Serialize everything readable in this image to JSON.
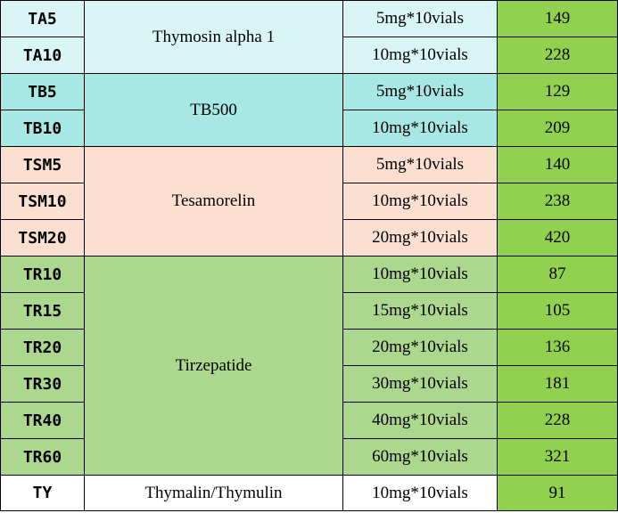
{
  "colors": {
    "thymosin": "#d9f5f5",
    "tb500": "#a8e8e4",
    "tesamorelin": "#fbe0d1",
    "tirzepatide": "#acd78e",
    "thymalin": "#ffffff",
    "price": "#92d050",
    "border": "#000000"
  },
  "groups": [
    {
      "name": "Thymosin alpha 1",
      "color_key": "thymosin",
      "rows": [
        {
          "code": "TA5",
          "spec": "5mg*10vials",
          "price": "149"
        },
        {
          "code": "TA10",
          "spec": "10mg*10vials",
          "price": "228"
        }
      ]
    },
    {
      "name": "TB500",
      "color_key": "tb500",
      "rows": [
        {
          "code": "TB5",
          "spec": "5mg*10vials",
          "price": "129"
        },
        {
          "code": "TB10",
          "spec": "10mg*10vials",
          "price": "209"
        }
      ]
    },
    {
      "name": "Tesamorelin",
      "color_key": "tesamorelin",
      "rows": [
        {
          "code": "TSM5",
          "spec": "5mg*10vials",
          "price": "140"
        },
        {
          "code": "TSM10",
          "spec": "10mg*10vials",
          "price": "238"
        },
        {
          "code": "TSM20",
          "spec": "20mg*10vials",
          "price": "420"
        }
      ]
    },
    {
      "name": "Tirzepatide",
      "color_key": "tirzepatide",
      "rows": [
        {
          "code": "TR10",
          "spec": "10mg*10vials",
          "price": "87"
        },
        {
          "code": "TR15",
          "spec": "15mg*10vials",
          "price": "105"
        },
        {
          "code": "TR20",
          "spec": "20mg*10vials",
          "price": "136"
        },
        {
          "code": "TR30",
          "spec": "30mg*10vials",
          "price": "181"
        },
        {
          "code": "TR40",
          "spec": "40mg*10vials",
          "price": "228"
        },
        {
          "code": "TR60",
          "spec": "60mg*10vials",
          "price": "321"
        }
      ]
    },
    {
      "name": "Thymalin/Thymulin",
      "color_key": "thymalin",
      "rows": [
        {
          "code": "TY",
          "spec": "10mg*10vials",
          "price": "91"
        }
      ]
    }
  ]
}
